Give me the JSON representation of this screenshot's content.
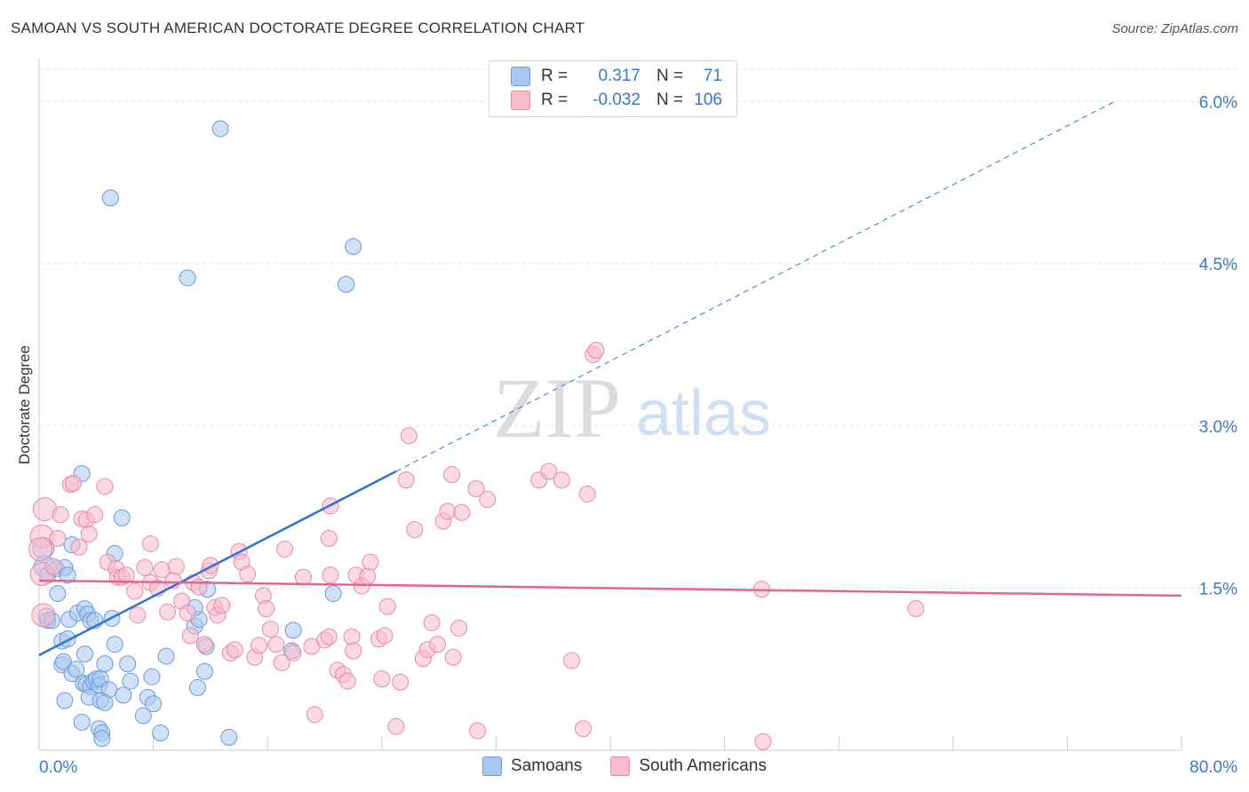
{
  "header": {
    "title": "SAMOAN VS SOUTH AMERICAN DOCTORATE DEGREE CORRELATION CHART",
    "source": "Source: ZipAtlas.com"
  },
  "legend": {
    "rows": [
      {
        "r_label": "R =",
        "r_value": "0.317",
        "n_label": "N =",
        "n_value": "71",
        "color": "#a9c8f0",
        "border": "#6a9ad8"
      },
      {
        "r_label": "R =",
        "r_value": "-0.032",
        "n_label": "N =",
        "n_value": "106",
        "color": "#f8bccc",
        "border": "#e888a8"
      }
    ]
  },
  "watermark": {
    "zip": "ZIP",
    "atlas": "atlas"
  },
  "chart_data": {
    "type": "scatter",
    "title": "SAMOAN VS SOUTH AMERICAN DOCTORATE DEGREE CORRELATION CHART",
    "xlabel": "",
    "ylabel": "Doctorate Degree",
    "xlim": [
      0,
      80
    ],
    "ylim": [
      0,
      6.3
    ],
    "x_tick_labels": [
      "0.0%",
      "80.0%"
    ],
    "y_ticks": [
      1.5,
      3.0,
      4.5,
      6.0
    ],
    "y_tick_labels": [
      "1.5%",
      "3.0%",
      "4.5%",
      "6.0%"
    ],
    "series": [
      {
        "name": "Samoans",
        "color": "#a9c8f0",
        "stroke": "#6a9ad8",
        "line_color": "#2f72d0",
        "r": 0.317,
        "n": 71,
        "trend": {
          "x0": 0,
          "y0": 0.88,
          "x1": 25,
          "y1": 2.58,
          "extend_to_x": 75.5
        },
        "points": [
          [
            12.7,
            5.75
          ],
          [
            5.0,
            5.11
          ],
          [
            22.0,
            4.66
          ],
          [
            10.4,
            4.37
          ],
          [
            21.5,
            4.31
          ],
          [
            0.3,
            1.87
          ],
          [
            0.4,
            1.7
          ],
          [
            0.6,
            1.62
          ],
          [
            1.2,
            1.68
          ],
          [
            1.8,
            1.69
          ],
          [
            3.0,
            2.56
          ],
          [
            2.3,
            1.9
          ],
          [
            5.8,
            2.15
          ],
          [
            5.3,
            1.82
          ],
          [
            0.5,
            1.24
          ],
          [
            0.6,
            1.2
          ],
          [
            0.9,
            1.2
          ],
          [
            1.3,
            1.45
          ],
          [
            2.1,
            1.21
          ],
          [
            2.7,
            1.27
          ],
          [
            3.2,
            1.31
          ],
          [
            3.4,
            1.26
          ],
          [
            3.6,
            1.2
          ],
          [
            3.9,
            1.2
          ],
          [
            5.1,
            1.22
          ],
          [
            1.6,
            1.01
          ],
          [
            2.0,
            1.03
          ],
          [
            3.2,
            0.89
          ],
          [
            5.3,
            0.98
          ],
          [
            8.9,
            0.87
          ],
          [
            10.9,
            1.15
          ],
          [
            11.2,
            1.21
          ],
          [
            11.7,
            0.96
          ],
          [
            1.6,
            0.79
          ],
          [
            1.7,
            0.82
          ],
          [
            2.3,
            0.71
          ],
          [
            2.6,
            0.75
          ],
          [
            3.1,
            0.62
          ],
          [
            3.3,
            0.61
          ],
          [
            3.6,
            0.59
          ],
          [
            3.8,
            0.64
          ],
          [
            4.0,
            0.66
          ],
          [
            4.2,
            0.6
          ],
          [
            4.3,
            0.66
          ],
          [
            4.6,
            0.8
          ],
          [
            4.9,
            0.56
          ],
          [
            5.9,
            0.51
          ],
          [
            6.2,
            0.8
          ],
          [
            6.4,
            0.64
          ],
          [
            7.6,
            0.49
          ],
          [
            8.0,
            0.43
          ],
          [
            7.9,
            0.68
          ],
          [
            11.1,
            0.58
          ],
          [
            11.6,
            0.73
          ],
          [
            1.8,
            0.46
          ],
          [
            3.5,
            0.49
          ],
          [
            4.3,
            0.46
          ],
          [
            4.6,
            0.44
          ],
          [
            7.3,
            0.32
          ],
          [
            3.0,
            0.26
          ],
          [
            4.2,
            0.2
          ],
          [
            4.4,
            0.16
          ],
          [
            4.4,
            0.11
          ],
          [
            8.5,
            0.16
          ],
          [
            13.3,
            0.12
          ],
          [
            11.8,
            1.49
          ],
          [
            17.7,
            0.92
          ],
          [
            17.8,
            1.11
          ],
          [
            20.6,
            1.45
          ],
          [
            10.9,
            1.32
          ],
          [
            2.0,
            1.62
          ]
        ]
      },
      {
        "name": "South Americans",
        "color": "#f8bccc",
        "stroke": "#e888a8",
        "line_color": "#e06890",
        "r": -0.032,
        "n": 106,
        "trend": {
          "x0": 0,
          "y0": 1.57,
          "x1": 80,
          "y1": 1.43
        },
        "points": [
          [
            0.2,
            1.98
          ],
          [
            0.4,
            2.23
          ],
          [
            0.2,
            1.63
          ],
          [
            0.3,
            1.25
          ],
          [
            1.0,
            1.7
          ],
          [
            1.5,
            2.18
          ],
          [
            1.3,
            1.96
          ],
          [
            2.2,
            2.46
          ],
          [
            2.4,
            2.47
          ],
          [
            2.8,
            1.88
          ],
          [
            3.0,
            2.14
          ],
          [
            3.3,
            2.13
          ],
          [
            3.5,
            2.0
          ],
          [
            3.9,
            2.18
          ],
          [
            4.6,
            2.44
          ],
          [
            4.8,
            1.74
          ],
          [
            5.4,
            1.68
          ],
          [
            5.5,
            1.6
          ],
          [
            5.8,
            1.6
          ],
          [
            6.1,
            1.62
          ],
          [
            6.7,
            1.47
          ],
          [
            6.9,
            1.25
          ],
          [
            7.4,
            1.69
          ],
          [
            7.8,
            1.55
          ],
          [
            7.8,
            1.91
          ],
          [
            8.3,
            1.5
          ],
          [
            8.6,
            1.67
          ],
          [
            9.0,
            1.28
          ],
          [
            9.4,
            1.57
          ],
          [
            9.6,
            1.7
          ],
          [
            10.0,
            1.38
          ],
          [
            10.4,
            1.27
          ],
          [
            10.6,
            1.06
          ],
          [
            10.8,
            1.55
          ],
          [
            11.2,
            1.51
          ],
          [
            11.6,
            0.98
          ],
          [
            11.9,
            1.66
          ],
          [
            12.0,
            1.71
          ],
          [
            12.3,
            1.32
          ],
          [
            12.5,
            1.25
          ],
          [
            12.8,
            1.34
          ],
          [
            13.4,
            0.9
          ],
          [
            13.7,
            0.93
          ],
          [
            14.0,
            1.84
          ],
          [
            14.2,
            1.74
          ],
          [
            14.6,
            1.63
          ],
          [
            15.1,
            0.86
          ],
          [
            15.4,
            0.97
          ],
          [
            15.7,
            1.43
          ],
          [
            15.9,
            1.31
          ],
          [
            16.2,
            1.12
          ],
          [
            16.6,
            0.98
          ],
          [
            17.0,
            0.81
          ],
          [
            17.2,
            1.86
          ],
          [
            17.8,
            0.9
          ],
          [
            18.5,
            1.6
          ],
          [
            19.1,
            0.96
          ],
          [
            19.3,
            0.33
          ],
          [
            20.0,
            1.02
          ],
          [
            20.3,
            1.05
          ],
          [
            20.4,
            1.62
          ],
          [
            20.3,
            1.96
          ],
          [
            20.4,
            2.26
          ],
          [
            20.9,
            0.74
          ],
          [
            21.3,
            0.7
          ],
          [
            21.6,
            0.64
          ],
          [
            21.9,
            1.05
          ],
          [
            22.0,
            0.92
          ],
          [
            22.2,
            1.62
          ],
          [
            22.6,
            1.52
          ],
          [
            23.0,
            1.61
          ],
          [
            23.2,
            1.74
          ],
          [
            23.8,
            1.03
          ],
          [
            24.0,
            0.66
          ],
          [
            24.2,
            1.06
          ],
          [
            24.4,
            1.33
          ],
          [
            25.0,
            0.22
          ],
          [
            25.3,
            0.63
          ],
          [
            25.7,
            2.5
          ],
          [
            25.9,
            2.91
          ],
          [
            26.3,
            2.04
          ],
          [
            26.9,
            0.85
          ],
          [
            27.2,
            0.93
          ],
          [
            27.5,
            1.18
          ],
          [
            27.9,
            0.98
          ],
          [
            28.3,
            2.12
          ],
          [
            28.6,
            2.21
          ],
          [
            28.9,
            2.55
          ],
          [
            29.0,
            0.86
          ],
          [
            29.4,
            1.13
          ],
          [
            29.6,
            2.2
          ],
          [
            30.6,
            2.42
          ],
          [
            30.7,
            0.18
          ],
          [
            31.4,
            2.32
          ],
          [
            35.0,
            2.5
          ],
          [
            35.7,
            2.58
          ],
          [
            36.6,
            2.5
          ],
          [
            37.3,
            0.83
          ],
          [
            38.1,
            0.2
          ],
          [
            38.8,
            3.66
          ],
          [
            39.0,
            3.7
          ],
          [
            38.4,
            2.37
          ],
          [
            50.7,
            0.08
          ],
          [
            50.6,
            1.49
          ],
          [
            61.4,
            1.31
          ],
          [
            0.1,
            1.86
          ]
        ]
      }
    ],
    "legend_labels": [
      "Samoans",
      "South Americans"
    ]
  }
}
